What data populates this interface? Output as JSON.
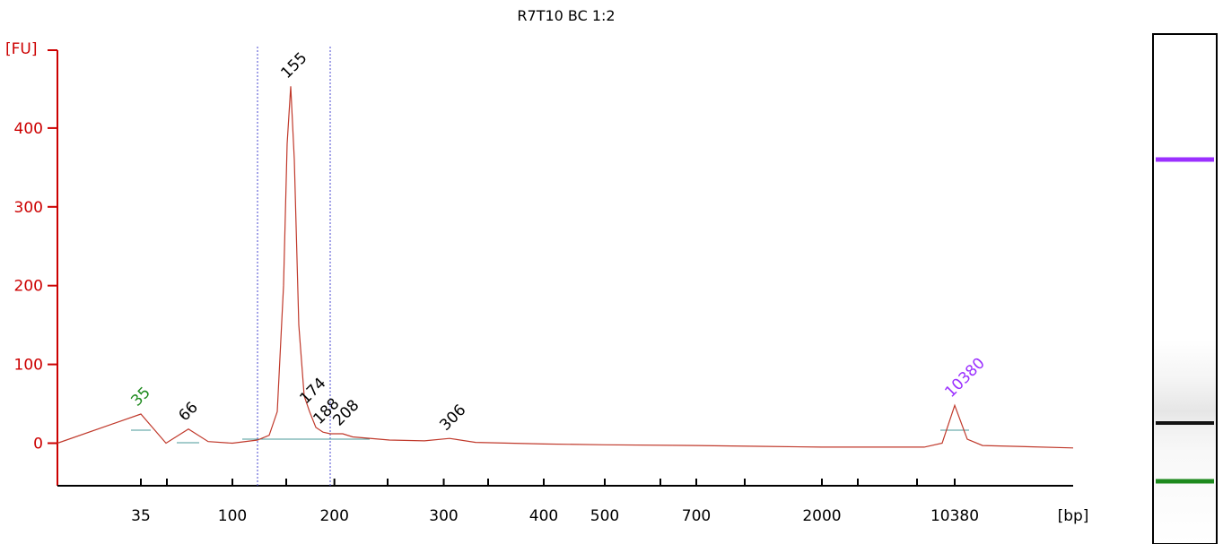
{
  "chart_data": {
    "type": "line",
    "title": "R7T10 BC 1:2",
    "ylabel": "[FU]",
    "xlabel": "[bp]",
    "ylim": [
      -55,
      500
    ],
    "y_ticks": [
      "0",
      "100",
      "200",
      "300",
      "400"
    ],
    "x_ticks": [
      "35",
      "100",
      "200",
      "300",
      "400",
      "500",
      "700",
      "2000",
      "10380"
    ],
    "x_scale": "nonlinear-bp",
    "grid": false,
    "colors": {
      "trace": "#c0392b",
      "axis": "#cc0000",
      "lower_marker": "#1e8a1e",
      "upper_marker": "#9b30ff",
      "region_lines": "#4a4ad0",
      "baseline": "#4a9a9a"
    },
    "series": [
      {
        "x": [
          35,
          50,
          66,
          80,
          100,
          118,
          130,
          140,
          148,
          152,
          155,
          158,
          162,
          168,
          174,
          180,
          188,
          196,
          208,
          220,
          250,
          280,
          306,
          330,
          400,
          500,
          700,
          1000,
          2000,
          5000,
          8000,
          9500,
          10380,
          11000,
          12000,
          15000
        ],
        "y": [
          37,
          0,
          18,
          2,
          0,
          4,
          10,
          40,
          200,
          380,
          453,
          360,
          150,
          60,
          40,
          20,
          14,
          12,
          12,
          8,
          4,
          3,
          6,
          1,
          -1,
          -2,
          -3,
          -4,
          -5,
          -5,
          -5,
          0,
          48,
          5,
          -3,
          -6
        ]
      }
    ],
    "peaks": [
      {
        "label": "35",
        "bp": 35,
        "fu": 37,
        "role": "lower-marker"
      },
      {
        "label": "66",
        "bp": 66,
        "fu": 18
      },
      {
        "label": "155",
        "bp": 155,
        "fu": 453
      },
      {
        "label": "174",
        "bp": 174,
        "fu": 40
      },
      {
        "label": "188",
        "bp": 188,
        "fu": 14
      },
      {
        "label": "208",
        "bp": 208,
        "fu": 12
      },
      {
        "label": "306",
        "bp": 306,
        "fu": 6
      },
      {
        "label": "10380",
        "bp": 10380,
        "fu": 48,
        "role": "upper-marker"
      }
    ],
    "region": {
      "from_bp": 118,
      "to_bp": 196
    },
    "gel_lane": {
      "bands": [
        {
          "role": "upper-marker",
          "color": "#9b30ff"
        },
        {
          "role": "main-band",
          "color": "#111111"
        },
        {
          "role": "lower-marker",
          "color": "#1e8a1e"
        }
      ]
    }
  }
}
